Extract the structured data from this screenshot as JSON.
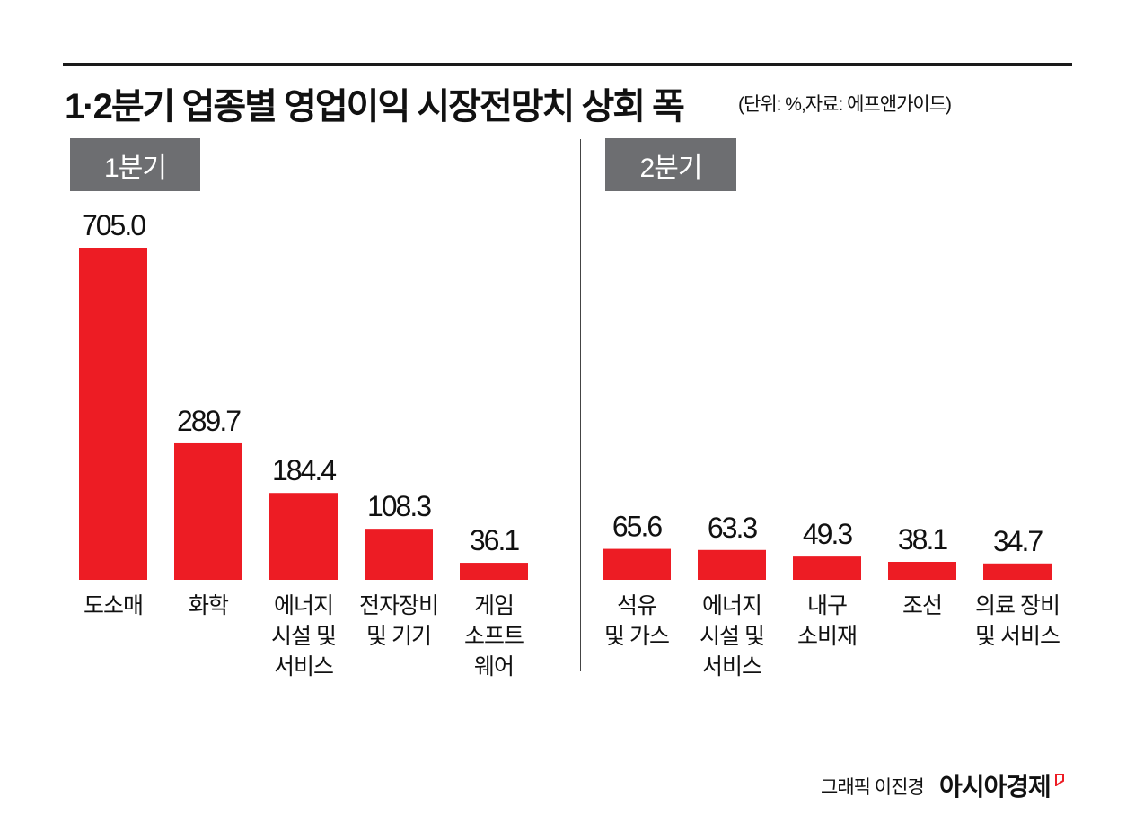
{
  "title": "1·2분기 업종별 영업이익 시장전망치 상회 폭",
  "subtitle": "(단위: %,자료: 에프앤가이드)",
  "credit": "그래픽 이진경",
  "brand": "아시아경제",
  "colors": {
    "bar": "#ed1c24",
    "label_box": "#6d6e71",
    "text": "#111111"
  },
  "chart_data": [
    {
      "type": "bar",
      "panel_label": "1분기",
      "categories": [
        [
          "도소매"
        ],
        [
          "화학"
        ],
        [
          "에너지",
          "시설 및",
          "서비스"
        ],
        [
          "전자장비",
          "및 기기"
        ],
        [
          "게임",
          "소프트",
          "웨어"
        ]
      ],
      "values": [
        705.0,
        289.7,
        184.4,
        108.3,
        36.1
      ],
      "value_labels": [
        "705.0",
        "289.7",
        "184.4",
        "108.3",
        "36.1"
      ],
      "ylim": [
        0,
        705
      ]
    },
    {
      "type": "bar",
      "panel_label": "2분기",
      "categories": [
        [
          "석유",
          "및 가스"
        ],
        [
          "에너지",
          "시설 및",
          "서비스"
        ],
        [
          "내구",
          "소비재"
        ],
        [
          "조선"
        ],
        [
          "의료 장비",
          "및 서비스"
        ]
      ],
      "values": [
        65.6,
        63.3,
        49.3,
        38.1,
        34.7
      ],
      "value_labels": [
        "65.6",
        "63.3",
        "49.3",
        "38.1",
        "34.7"
      ],
      "ylim": [
        0,
        705
      ]
    }
  ]
}
